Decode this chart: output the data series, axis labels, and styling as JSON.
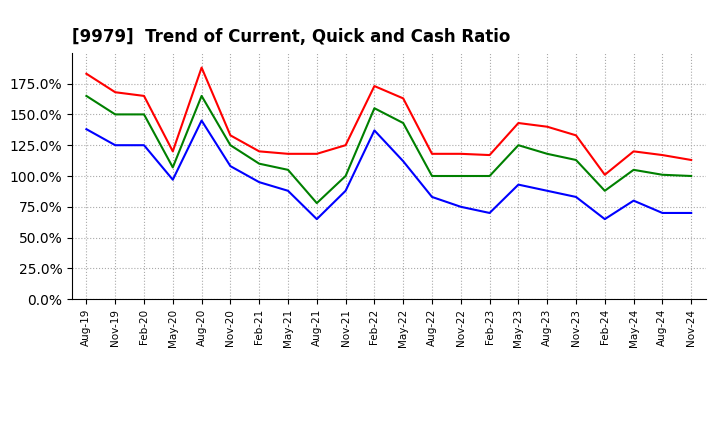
{
  "title": "[9979]  Trend of Current, Quick and Cash Ratio",
  "x_labels": [
    "Aug-19",
    "Nov-19",
    "Feb-20",
    "May-20",
    "Aug-20",
    "Nov-20",
    "Feb-21",
    "May-21",
    "Aug-21",
    "Nov-21",
    "Feb-22",
    "May-22",
    "Aug-22",
    "Nov-22",
    "Feb-23",
    "May-23",
    "Aug-23",
    "Nov-23",
    "Feb-24",
    "May-24",
    "Aug-24",
    "Nov-24"
  ],
  "current_ratio": [
    183,
    168,
    165,
    120,
    188,
    133,
    120,
    118,
    118,
    125,
    173,
    163,
    118,
    118,
    117,
    143,
    140,
    133,
    101,
    120,
    117,
    113
  ],
  "quick_ratio": [
    165,
    150,
    150,
    107,
    165,
    125,
    110,
    105,
    78,
    100,
    155,
    143,
    100,
    100,
    100,
    125,
    118,
    113,
    88,
    105,
    101,
    100
  ],
  "cash_ratio": [
    138,
    125,
    125,
    97,
    145,
    108,
    95,
    88,
    65,
    88,
    137,
    112,
    83,
    75,
    70,
    93,
    88,
    83,
    65,
    80,
    70,
    70
  ],
  "ylim": [
    0,
    200
  ],
  "yticks": [
    0,
    25,
    50,
    75,
    100,
    125,
    150,
    175
  ],
  "current_color": "#ff0000",
  "quick_color": "#008000",
  "cash_color": "#0000ff",
  "bg_color": "#ffffff",
  "grid_color": "#aaaaaa",
  "title_fontsize": 12
}
